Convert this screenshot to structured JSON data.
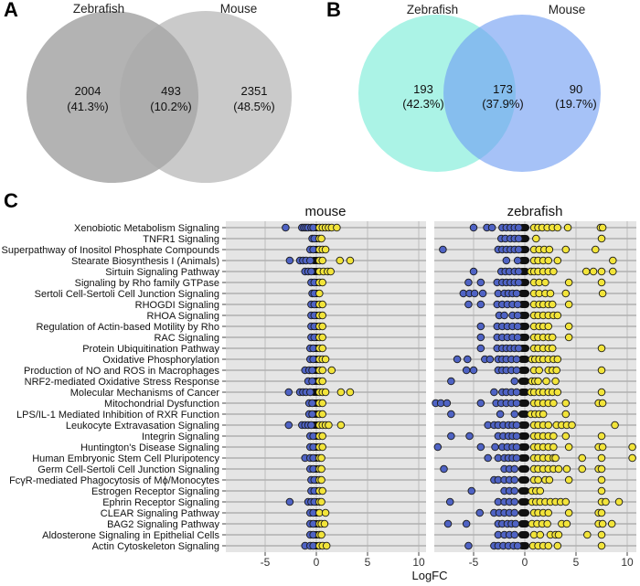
{
  "panels": {
    "a": "A",
    "b": "B",
    "c": "C"
  },
  "venn_a": {
    "left_label": "Zebrafish",
    "right_label": "Mouse",
    "left_count": "2004",
    "left_pct": "(41.3%)",
    "overlap_count": "493",
    "overlap_pct": "(10.2%)",
    "right_count": "2351",
    "right_pct": "(48.5%)",
    "left_color": "#9a9a9a",
    "right_color": "#b9b9b9"
  },
  "venn_b": {
    "left_label": "Zebrafish",
    "right_label": "Mouse",
    "left_count": "193",
    "left_pct": "(42.3%)",
    "overlap_count": "173",
    "overlap_pct": "(37.9%)",
    "right_count": "90",
    "right_pct": "(19.7%)",
    "left_color": "#7eecd9",
    "right_color": "#6f9cf2"
  },
  "chart_data": [
    {
      "type": "venn",
      "title": "A",
      "sets": [
        "Zebrafish",
        "Mouse"
      ],
      "regions": [
        {
          "region": "Zebrafish only",
          "count": 2004,
          "percent": 41.3
        },
        {
          "region": "Both",
          "count": 493,
          "percent": 10.2
        },
        {
          "region": "Mouse only",
          "count": 2351,
          "percent": 48.5
        }
      ]
    },
    {
      "type": "venn",
      "title": "B",
      "sets": [
        "Zebrafish",
        "Mouse"
      ],
      "regions": [
        {
          "region": "Zebrafish only",
          "count": 193,
          "percent": 42.3
        },
        {
          "region": "Both",
          "count": 173,
          "percent": 37.9
        },
        {
          "region": "Mouse only",
          "count": 90,
          "percent": 19.7
        }
      ]
    },
    {
      "type": "scatter",
      "title": "C",
      "xlabel": "LogFC",
      "ylabel": "",
      "xlim": [
        -8.8,
        10.8
      ],
      "xticks": [
        -5,
        0,
        5,
        10
      ],
      "facets": [
        "mouse",
        "zebrafish"
      ],
      "grid": true,
      "down_color": "#4f63c4",
      "up_color": "#f2e43a",
      "categories": [
        "Xenobiotic Metabolism Signaling",
        "TNFR1 Signaling",
        "Superpathway of Inositol Phosphate Compounds",
        "Stearate Biosynthesis I (Animals)",
        "Sirtuin Signaling Pathway",
        "Signaling by Rho family GTPase",
        "Sertoli Cell-Sertoli Cell Junction Signaling",
        "RHOGDI Signaling",
        "RHOA Signaling",
        "Regulation of Actin-based Motility by Rho",
        "RAC Signaling",
        "Protein Ubiquitination Pathway",
        "Oxidative Phosphorylation",
        "Production of NO and ROS in Macrophages",
        "NRF2-mediated Oxidative Stress Response",
        "Molecular Mechanisms of Cancer",
        "Mitochondrial Dysfunction",
        "LPS/IL-1 Mediated Inhibition of RXR Function",
        "Leukocyte Extravasation Signaling",
        "Integrin Signaling",
        "Huntington's Disease Signaling",
        "Human Embryonic Stem Cell Pluripotency",
        "Germ Cell-Sertoli Cell Junction Signaling",
        "FcγR-mediated Phagocytosis of Mϕ/Monocytes",
        "Estrogen Receptor Signaling",
        "Ephrin Receptor Signaling",
        "CLEAR Signaling Pathway",
        "BAG2 Signaling Pathway",
        "Aldosterone Signaling in Epithelial Cells",
        "Actin Cytoskeleton Signaling"
      ],
      "series": [
        {
          "name": "mouse",
          "points": [
            [
              -3.0,
              -1.4,
              -1.2,
              -1.0,
              -0.8,
              -0.5,
              -0.3,
              0.3,
              0.6,
              0.9,
              1.2,
              1.5,
              2.0
            ],
            [
              -0.4,
              -0.2,
              0.3,
              0.5
            ],
            [
              -0.6,
              -0.3,
              0.3,
              0.6,
              0.9
            ],
            [
              -2.6,
              -1.6,
              -1.3,
              -1.0,
              -0.6,
              0.3,
              0.6,
              2.3,
              3.3
            ],
            [
              -1.1,
              -0.8,
              -0.5,
              0.3,
              0.7,
              1.1,
              1.4
            ],
            [
              -0.5,
              -0.2,
              0.3,
              0.6
            ],
            [
              -0.4,
              -0.2,
              0.3
            ],
            [
              -0.5,
              -0.2,
              0.3,
              0.6
            ],
            [
              -0.5,
              -0.2,
              0.3,
              0.6
            ],
            [
              -0.5,
              -0.2,
              0.3,
              0.6
            ],
            [
              -0.5,
              -0.2,
              0.3,
              0.6
            ],
            [
              -0.6,
              -0.3,
              0.3,
              0.6
            ],
            [
              -0.6,
              -0.3,
              0.3,
              0.6,
              0.9
            ],
            [
              -1.1,
              -0.7,
              -0.4,
              0.3,
              0.6,
              1.5
            ],
            [
              -0.8,
              -0.4,
              0.3,
              0.6
            ],
            [
              -2.7,
              -1.6,
              -1.3,
              -1.0,
              -0.6,
              0.3,
              0.6,
              0.9,
              2.4,
              3.3
            ],
            [
              -0.7,
              -0.4,
              0.3,
              0.6
            ],
            [
              -0.7,
              -0.4,
              0.3,
              0.6
            ],
            [
              -2.7,
              -1.4,
              -1.1,
              -0.8,
              -0.5,
              0.3,
              0.6,
              0.9,
              1.2,
              2.4
            ],
            [
              -0.6,
              -0.3,
              0.3,
              0.6
            ],
            [
              -0.6,
              -0.3,
              0.3,
              0.6
            ],
            [
              -1.1,
              -0.6,
              -0.3,
              0.3,
              0.5
            ],
            [
              -0.6,
              -0.3,
              0.3,
              0.5
            ],
            [
              -0.5,
              -0.2,
              0.3,
              0.5
            ],
            [
              -0.5,
              -0.2,
              0.3,
              0.6
            ],
            [
              -2.6,
              -0.8,
              -0.5,
              -0.2,
              0.3,
              0.5
            ],
            [
              -0.6,
              -0.3,
              0.3,
              0.9
            ],
            [
              -0.6,
              -0.3,
              0.3,
              0.5,
              0.8
            ],
            [
              -0.6,
              -0.3,
              0.3,
              0.5
            ],
            [
              -1.1,
              -0.6,
              -0.3,
              0.3,
              0.6,
              1.0
            ]
          ]
        },
        {
          "name": "zebrafish",
          "points": [
            [
              -5.0,
              -3.7,
              -3.2,
              -2.2,
              -1.8,
              -1.4,
              -1.0,
              -0.6,
              0.9,
              1.3,
              1.7,
              2.2,
              2.7,
              3.2,
              4.2,
              7.4,
              7.6
            ],
            [
              -2.3,
              -1.9,
              -1.4,
              -1.0,
              -0.6,
              1.1,
              7.5
            ],
            [
              -8.0,
              -2.6,
              -2.2,
              -1.8,
              -1.4,
              -1.0,
              -0.6,
              0.9,
              1.4,
              1.9,
              2.4,
              4.0,
              6.9
            ],
            [
              -1.8,
              -0.7,
              0.9,
              1.3,
              1.8,
              2.3,
              3.2,
              8.6
            ],
            [
              -5.0,
              -2.3,
              -1.9,
              -1.5,
              -1.0,
              -0.6,
              0.6,
              0.9,
              1.3,
              1.8,
              2.3,
              2.8,
              6.0,
              6.7,
              7.5,
              8.6
            ],
            [
              -5.5,
              -4.3,
              -2.7,
              -2.2,
              -1.8,
              -1.4,
              -1.0,
              -0.6,
              0.9,
              1.4,
              2.0,
              4.3,
              7.5
            ],
            [
              -6.0,
              -5.4,
              -4.9,
              -4.1,
              -2.6,
              -2.0,
              -1.6,
              -1.2,
              -0.8,
              0.9,
              1.4,
              2.0,
              2.5,
              4.0,
              7.6
            ],
            [
              -5.5,
              -4.3,
              -2.7,
              -2.2,
              -1.7,
              -1.2,
              -0.7,
              0.9,
              1.4,
              1.8,
              2.3,
              2.7,
              4.3
            ],
            [
              -2.5,
              -2.0,
              -1.2,
              -0.7,
              0.9,
              1.3,
              1.8,
              2.3,
              2.8,
              3.2
            ],
            [
              -4.3,
              -2.7,
              -2.2,
              -1.7,
              -1.2,
              -0.7,
              0.9,
              1.4,
              1.8,
              2.3,
              4.3
            ],
            [
              -4.3,
              -2.7,
              -2.2,
              -1.7,
              -1.2,
              -0.7,
              0.9,
              1.3,
              1.8,
              2.3,
              2.7,
              4.3
            ],
            [
              -4.3,
              -2.7,
              -2.2,
              -1.8,
              -1.4,
              -1.0,
              -0.6,
              0.9,
              1.3,
              1.8,
              2.3,
              2.7,
              7.5
            ],
            [
              -6.6,
              -5.6,
              -3.9,
              -3.4,
              -2.6,
              -2.2,
              -1.8,
              -1.3,
              -0.8,
              0.7,
              1.0,
              1.4,
              1.8,
              2.3,
              2.8,
              3.2
            ],
            [
              -5.7,
              -5.0,
              -2.6,
              -2.2,
              -1.8,
              -1.3,
              -0.8,
              0.9,
              1.4,
              2.3,
              2.7,
              3.1,
              7.5
            ],
            [
              -7.2,
              -1.0,
              0.7,
              1.0,
              1.3,
              2.1,
              3.0
            ],
            [
              -3.0,
              -2.2,
              -1.8,
              -1.3,
              -0.8,
              0.6,
              0.9,
              1.4,
              1.8,
              2.3,
              2.7,
              3.2,
              7.5
            ],
            [
              -8.7,
              -8.2,
              -7.6,
              -4.3,
              -2.8,
              -2.3,
              -1.8,
              -1.3,
              -0.8,
              0.9,
              1.3,
              1.8,
              2.3,
              2.8,
              4.0,
              7.2,
              7.6
            ],
            [
              -7.2,
              -2.4,
              -1.0,
              0.6,
              1.0,
              1.4,
              1.8,
              4.0
            ],
            [
              -3.6,
              -3.0,
              -2.6,
              -2.1,
              -1.6,
              -1.2,
              -0.8,
              0.9,
              1.3,
              1.8,
              2.3,
              3.1,
              3.6,
              4.1,
              4.6,
              8.8
            ],
            [
              -7.2,
              -5.4,
              -2.6,
              -2.1,
              -1.6,
              -1.2,
              -0.8,
              0.9,
              1.3,
              1.8,
              2.3,
              2.8,
              4.0,
              7.5
            ],
            [
              -8.5,
              -4.3,
              -2.9,
              -2.2,
              -1.7,
              -1.2,
              -0.8,
              0.9,
              1.3,
              1.8,
              2.3,
              2.8,
              4.3,
              7.2,
              7.6,
              10.5
            ],
            [
              -3.6,
              -2.6,
              -2.0,
              -1.6,
              -1.2,
              -0.8,
              0.9,
              1.3,
              1.8,
              2.3,
              2.8,
              3.0,
              5.6,
              7.5,
              10.5
            ],
            [
              -7.9,
              -2.0,
              -1.5,
              -1.0,
              0.9,
              1.3,
              1.8,
              2.3,
              2.8,
              3.3,
              4.1,
              5.6,
              7.2,
              7.5
            ],
            [
              -3.0,
              -2.6,
              -2.0,
              -1.5,
              -1.0,
              0.9,
              1.3,
              2.0,
              2.4,
              4.3,
              7.5
            ],
            [
              -5.2,
              -2.0,
              -1.5,
              -1.0,
              0.7,
              1.1,
              1.5,
              7.5
            ],
            [
              -7.3,
              -2.6,
              -2.0,
              -1.5,
              -1.0,
              0.7,
              1.1,
              1.5,
              2.0,
              2.5,
              3.0,
              3.5,
              4.0,
              7.5,
              7.9,
              9.2
            ],
            [
              -4.4,
              -3.0,
              -2.5,
              -2.0,
              -1.5,
              -1.0,
              0.9,
              1.3,
              1.8,
              2.3,
              4.3,
              7.2,
              7.5
            ],
            [
              -7.5,
              -5.7,
              -2.6,
              -2.2,
              -1.7,
              -1.3,
              -0.9,
              0.7,
              1.2,
              1.7,
              2.2,
              3.6,
              4.1,
              7.2,
              7.6,
              8.5
            ],
            [
              -2.6,
              -2.0,
              -1.5,
              -1.0,
              0.9,
              1.5,
              2.5,
              3.0,
              3.3,
              6.1,
              7.5
            ],
            [
              -5.5,
              -3.0,
              -2.6,
              -2.1,
              -1.6,
              -1.1,
              -0.7,
              0.8,
              1.3,
              1.8,
              2.3,
              3.2,
              7.5
            ]
          ]
        }
      ]
    }
  ],
  "facet_titles": [
    "mouse",
    "zebrafish"
  ],
  "x_axis_title": "LogFC",
  "x_tick_labels": [
    "-5",
    "0",
    "5",
    "10"
  ]
}
